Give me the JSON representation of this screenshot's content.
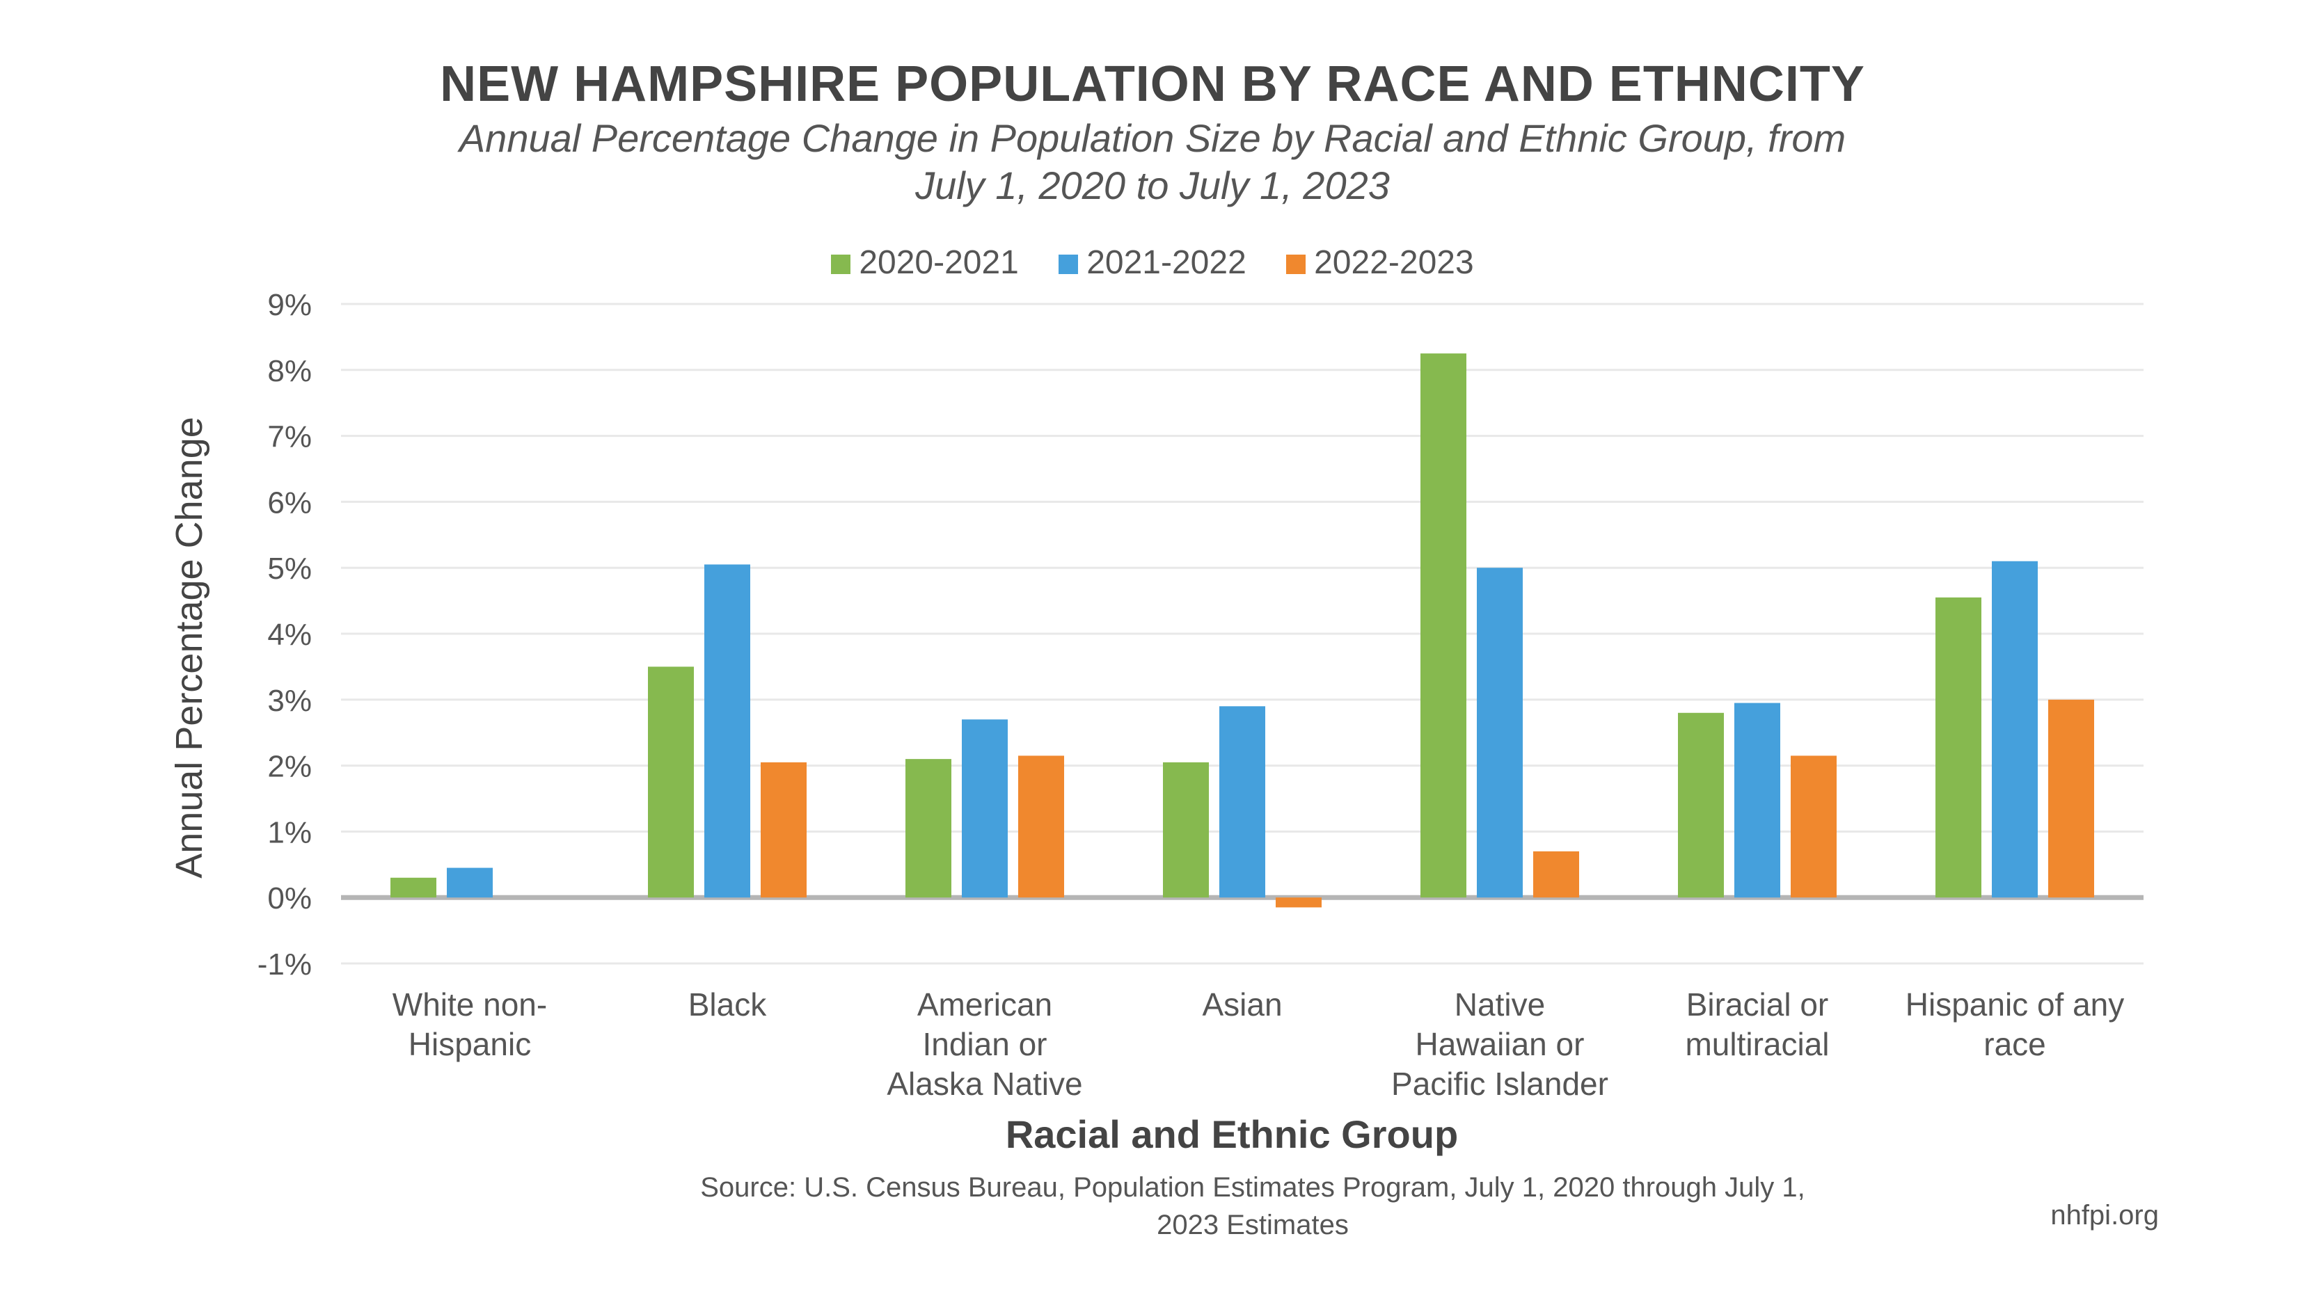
{
  "chart_data": {
    "type": "bar",
    "title": "NEW HAMPSHIRE POPULATION BY RACE AND ETHNCITY",
    "subtitle_line1": "Annual Percentage Change in Population Size by Racial and Ethnic Group, from",
    "subtitle_line2": "July 1, 2020 to July 1, 2023",
    "xlabel": "Racial and Ethnic Group",
    "ylabel": "Annual Percentage Change",
    "ylim": [
      -1,
      9
    ],
    "yticks": [
      -1,
      0,
      1,
      2,
      3,
      4,
      5,
      6,
      7,
      8,
      9
    ],
    "ytick_labels": [
      "-1%",
      "0%",
      "1%",
      "2%",
      "3%",
      "4%",
      "5%",
      "6%",
      "7%",
      "8%",
      "9%"
    ],
    "grid": true,
    "legend_position": "top",
    "categories": [
      [
        "White non-",
        "Hispanic"
      ],
      [
        "Black"
      ],
      [
        "American",
        "Indian or",
        "Alaska Native"
      ],
      [
        "Asian"
      ],
      [
        "Native",
        "Hawaiian or",
        "Pacific Islander"
      ],
      [
        "Biracial or",
        "multiracial"
      ],
      [
        "Hispanic of any",
        "race"
      ]
    ],
    "series": [
      {
        "name": "2020-2021",
        "color": "#86b94f",
        "values": [
          0.3,
          3.5,
          2.1,
          2.05,
          8.25,
          2.8,
          4.55
        ]
      },
      {
        "name": "2021-2022",
        "color": "#45a0dc",
        "values": [
          0.45,
          5.05,
          2.7,
          2.9,
          5.0,
          2.95,
          5.1
        ]
      },
      {
        "name": "2022-2023",
        "color": "#f0882e",
        "values": [
          0.0,
          2.05,
          2.15,
          -0.15,
          0.7,
          2.15,
          3.0
        ]
      }
    ]
  },
  "source_line1": "Source: U.S. Census Bureau, Population Estimates Program, July 1, 2020 through July 1,",
  "source_line2": "2023 Estimates",
  "site": "nhfpi.org"
}
